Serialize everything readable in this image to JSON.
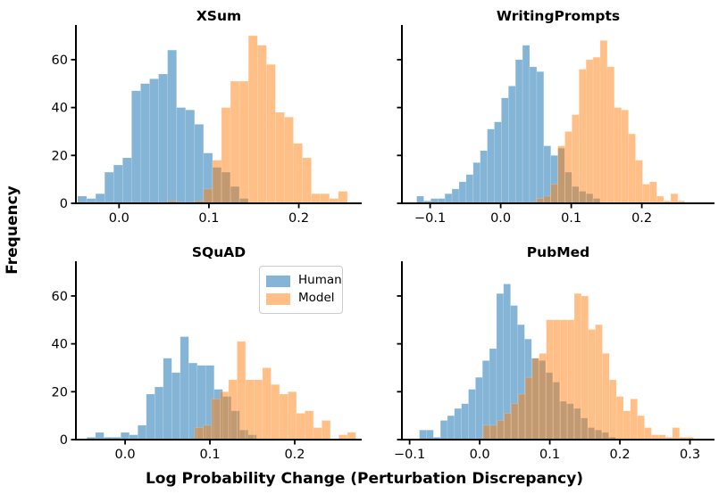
{
  "figure": {
    "ylabel": "Frequency",
    "xlabel": "Log Probability Change (Perturbation Discrepancy)"
  },
  "legend": {
    "entries": [
      {
        "label": "Human",
        "color": "#1f77b4",
        "opacity": 0.55
      },
      {
        "label": "Model",
        "color": "#ff7f0e",
        "opacity": 0.5
      }
    ]
  },
  "chart_data": [
    {
      "type": "histogram",
      "title": "XSum",
      "bin_width": 0.01,
      "xlim": [
        -0.048,
        0.27
      ],
      "ylim": [
        0,
        73
      ],
      "xticks": {
        "values": [
          0.0,
          0.1,
          0.2
        ],
        "labels": [
          "0.0",
          "0.1",
          "0.2"
        ]
      },
      "yticks": {
        "values": [
          0,
          20,
          40,
          60
        ],
        "labels": [
          "0",
          "20",
          "40",
          "60"
        ],
        "show_labels": true
      },
      "series": [
        {
          "name": "Human",
          "color": "#1f77b4",
          "opacity": 0.55,
          "bin_start": -0.046,
          "counts": [
            3,
            2,
            4,
            13,
            16,
            19,
            47,
            50,
            52,
            54,
            64,
            40,
            39,
            33,
            21,
            15,
            13,
            7,
            2
          ]
        },
        {
          "name": "Model",
          "color": "#ff7f0e",
          "opacity": 0.5,
          "bin_start": 0.054,
          "counts": [
            1,
            0,
            0,
            1,
            6,
            18,
            40,
            51,
            51,
            70,
            66,
            58,
            38,
            36,
            25,
            19,
            4,
            4,
            2,
            5
          ]
        }
      ]
    },
    {
      "type": "histogram",
      "title": "WritingPrompts",
      "bin_width": 0.01,
      "xlim": [
        -0.14,
        0.303
      ],
      "ylim": [
        0,
        73
      ],
      "xticks": {
        "values": [
          -0.1,
          0.0,
          0.1,
          0.2
        ],
        "labels": [
          "−0.1",
          "0.0",
          "0.1",
          "0.2"
        ]
      },
      "yticks": {
        "values": [
          0,
          20,
          40,
          60
        ],
        "labels": [
          "0",
          "20",
          "40",
          "60"
        ],
        "show_labels": false
      },
      "series": [
        {
          "name": "Human",
          "color": "#1f77b4",
          "opacity": 0.55,
          "bin_start": -0.119,
          "counts": [
            3,
            1,
            2,
            2,
            4,
            6,
            9,
            12,
            17,
            22,
            31,
            34,
            44,
            49,
            60,
            66,
            57,
            55,
            24,
            20,
            23,
            13,
            7,
            5,
            4,
            2
          ]
        },
        {
          "name": "Model",
          "color": "#ff7f0e",
          "opacity": 0.5,
          "bin_start": 0.051,
          "counts": [
            2,
            3,
            8,
            24,
            30,
            37,
            56,
            60,
            61,
            68,
            57,
            40,
            39,
            29,
            18,
            8,
            9,
            3,
            1,
            4,
            1
          ]
        }
      ]
    },
    {
      "type": "histogram",
      "title": "SQuAD",
      "bin_width": 0.01,
      "xlim": [
        -0.058,
        0.279
      ],
      "ylim": [
        0,
        73
      ],
      "xticks": {
        "values": [
          0.0,
          0.1,
          0.2
        ],
        "labels": [
          "0.0",
          "0.1",
          "0.2"
        ]
      },
      "yticks": {
        "values": [
          0,
          20,
          40,
          60
        ],
        "labels": [
          "0",
          "20",
          "40",
          "60"
        ],
        "show_labels": true
      },
      "series": [
        {
          "name": "Human",
          "color": "#1f77b4",
          "opacity": 0.55,
          "bin_start": -0.045,
          "counts": [
            1,
            3,
            1,
            1,
            3,
            2,
            6,
            19,
            22,
            34,
            28,
            43,
            32,
            31,
            31,
            21,
            18,
            12,
            4,
            2
          ]
        },
        {
          "name": "Model",
          "color": "#ff7f0e",
          "opacity": 0.5,
          "bin_start": 0.082,
          "counts": [
            5,
            6,
            17,
            20,
            25,
            41,
            25,
            25,
            30,
            23,
            19,
            20,
            11,
            12,
            5,
            8,
            0,
            2,
            3
          ]
        }
      ]
    },
    {
      "type": "histogram",
      "title": "PubMed",
      "bin_width": 0.01,
      "xlim": [
        -0.111,
        0.335
      ],
      "ylim": [
        0,
        73
      ],
      "xticks": {
        "values": [
          -0.1,
          0.0,
          0.1,
          0.2,
          0.3
        ],
        "labels": [
          "−0.1",
          "0.0",
          "0.1",
          "0.2",
          "0.3"
        ]
      },
      "yticks": {
        "values": [
          0,
          20,
          40,
          60
        ],
        "labels": [
          "0",
          "20",
          "40",
          "60"
        ],
        "show_labels": false
      },
      "series": [
        {
          "name": "Human",
          "color": "#1f77b4",
          "opacity": 0.55,
          "bin_start": -0.086,
          "counts": [
            4,
            4,
            1,
            8,
            10,
            13,
            15,
            21,
            26,
            33,
            38,
            61,
            65,
            56,
            48,
            42,
            34,
            33,
            28,
            24,
            16,
            15,
            13,
            9,
            5,
            4,
            3,
            1
          ]
        },
        {
          "name": "Model",
          "color": "#ff7f0e",
          "opacity": 0.5,
          "bin_start": 0.005,
          "counts": [
            6,
            6,
            8,
            11,
            15,
            19,
            26,
            34,
            36,
            50,
            50,
            50,
            50,
            61,
            60,
            46,
            48,
            36,
            25,
            18,
            12,
            17,
            10,
            5,
            2,
            2,
            1,
            5,
            1,
            1
          ]
        }
      ]
    }
  ]
}
